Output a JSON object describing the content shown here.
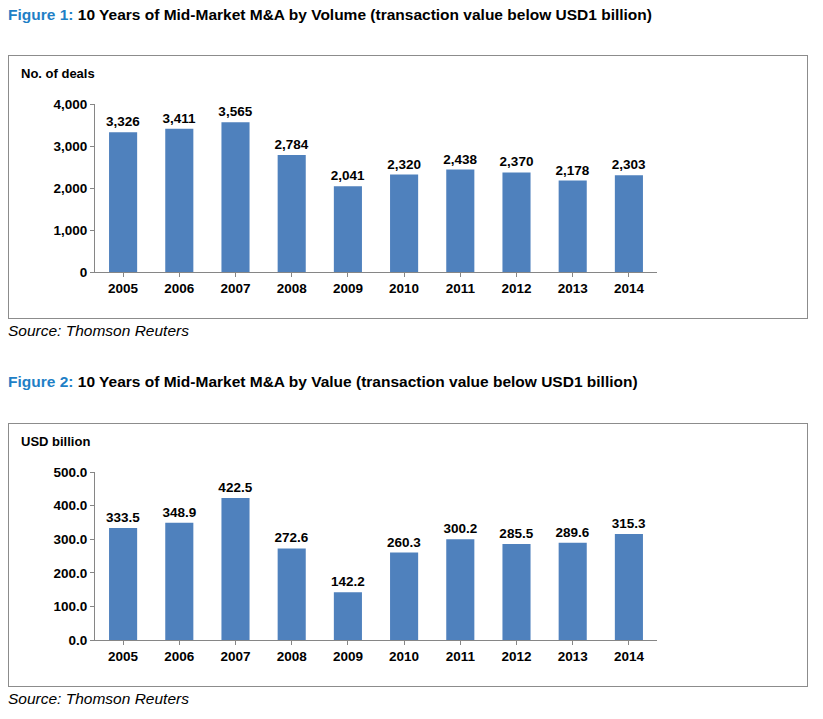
{
  "chart_data": [
    {
      "type": "bar",
      "title": "Figure 1: 10 Years of Mid-Market M&A by Volume (transaction value below USD1 billion)",
      "ylabel": "No. of deals",
      "source": "Source: Thomson Reuters",
      "categories": [
        "2005",
        "2006",
        "2007",
        "2008",
        "2009",
        "2010",
        "2011",
        "2012",
        "2013",
        "2014"
      ],
      "values": [
        3326,
        3411,
        3565,
        2784,
        2041,
        2320,
        2438,
        2370,
        2178,
        2303
      ],
      "value_labels": [
        "3,326",
        "3,411",
        "3,565",
        "2,784",
        "2,041",
        "2,320",
        "2,438",
        "2,370",
        "2,178",
        "2,303"
      ],
      "color": "#4f81bd",
      "ylim": [
        0,
        4000
      ],
      "yticks": [
        0,
        {
          "value": 1000,
          "label": "1,000"
        },
        {
          "value": 2000,
          "label": "2,000"
        },
        {
          "value": 3000,
          "label": "3,000"
        },
        {
          "value": 4000,
          "label": "4,000"
        }
      ],
      "grid": false,
      "data_labels": true
    },
    {
      "type": "bar",
      "title": "Figure 2: 10 Years of Mid-Market M&A by Value (transaction value below USD1 billion)",
      "ylabel": "USD billion",
      "source": "Source: Thomson Reuters",
      "categories": [
        "2005",
        "2006",
        "2007",
        "2008",
        "2009",
        "2010",
        "2011",
        "2012",
        "2013",
        "2014"
      ],
      "values": [
        333.5,
        348.9,
        422.5,
        272.6,
        142.2,
        260.3,
        300.2,
        285.5,
        289.6,
        315.3
      ],
      "color": "#4f81bd",
      "ylim": [
        0,
        500
      ],
      "yticks": [
        {
          "value": 0,
          "label": "0.0"
        },
        {
          "value": 100,
          "label": "100.0"
        },
        {
          "value": 200,
          "label": "200.0"
        },
        {
          "value": 300,
          "label": "300.0"
        },
        {
          "value": 400,
          "label": "400.0"
        },
        {
          "value": 500,
          "label": "500.0"
        }
      ],
      "grid": false,
      "data_labels": true
    }
  ]
}
